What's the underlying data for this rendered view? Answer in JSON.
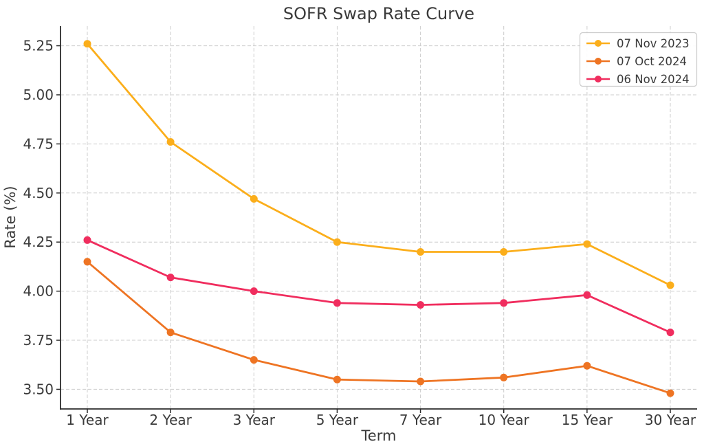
{
  "chart_data": {
    "type": "line",
    "title": "SOFR Swap Rate Curve",
    "xlabel": "Term",
    "ylabel": "Rate (%)",
    "categories": [
      "1 Year",
      "2 Year",
      "3 Year",
      "5 Year",
      "7 Year",
      "10 Year",
      "15 Year",
      "30 Year"
    ],
    "series": [
      {
        "name": "07 Nov 2023",
        "color": "#FBAE1B",
        "values": [
          5.26,
          4.76,
          4.47,
          4.25,
          4.2,
          4.2,
          4.24,
          4.03
        ]
      },
      {
        "name": "07 Oct 2024",
        "color": "#EE7423",
        "values": [
          4.15,
          3.79,
          3.65,
          3.55,
          3.54,
          3.56,
          3.62,
          3.48
        ]
      },
      {
        "name": "06 Nov 2024",
        "color": "#F02D5E",
        "values": [
          4.26,
          4.07,
          4.0,
          3.94,
          3.93,
          3.94,
          3.98,
          3.79
        ]
      }
    ],
    "yticks": [
      3.5,
      3.75,
      4.0,
      4.25,
      4.5,
      4.75,
      5.0,
      5.25
    ],
    "ytick_labels": [
      "3.50",
      "3.75",
      "4.00",
      "4.25",
      "4.50",
      "4.75",
      "5.00",
      "5.25"
    ],
    "ylim": [
      3.4,
      5.35
    ],
    "grid": true,
    "grid_style": "dashed",
    "legend_position": "upper right",
    "legend_entries": [
      "07 Nov 2023",
      "07 Oct 2024",
      "06 Nov 2024"
    ]
  },
  "style": {
    "background": "#ffffff",
    "grid_color": "#cccccc",
    "spine_color": "#2b2b2b",
    "text_color": "#3a3a3a"
  }
}
